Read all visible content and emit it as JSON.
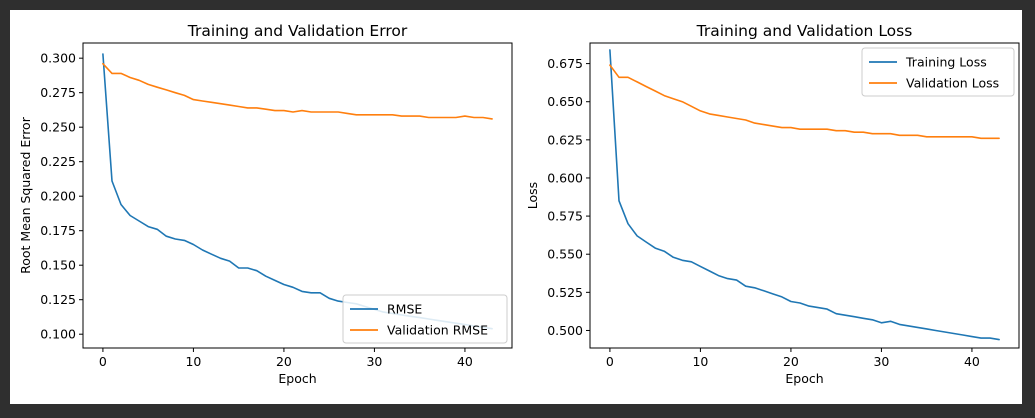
{
  "colors": {
    "train": "#1f77b4",
    "val": "#ff7f0e",
    "frame": "#000000",
    "legend_border": "#cccccc"
  },
  "chart_data": [
    {
      "type": "line",
      "title": "Training and Validation Error",
      "xlabel": "Epoch",
      "ylabel": "Root Mean Squared Error",
      "xlim": [
        -2.2,
        45.2
      ],
      "ylim": [
        0.09,
        0.311
      ],
      "xticks": [
        0,
        10,
        20,
        30,
        40
      ],
      "yticks": [
        0.1,
        0.125,
        0.15,
        0.175,
        0.2,
        0.225,
        0.25,
        0.275,
        0.3
      ],
      "ytick_labels": [
        "0.100",
        "0.125",
        "0.150",
        "0.175",
        "0.200",
        "0.225",
        "0.250",
        "0.275",
        "0.300"
      ],
      "legend_loc": "lower right",
      "series": [
        {
          "name": "RMSE",
          "color": "#1f77b4",
          "x": [
            0,
            1,
            2,
            3,
            4,
            5,
            6,
            7,
            8,
            9,
            10,
            11,
            12,
            13,
            14,
            15,
            16,
            17,
            18,
            19,
            20,
            21,
            22,
            23,
            24,
            25,
            26,
            27,
            28,
            29,
            30,
            31,
            32,
            33,
            34,
            35,
            36,
            37,
            38,
            39,
            40,
            41,
            42,
            43
          ],
          "y": [
            0.303,
            0.211,
            0.194,
            0.186,
            0.182,
            0.178,
            0.176,
            0.171,
            0.169,
            0.168,
            0.165,
            0.161,
            0.158,
            0.155,
            0.153,
            0.148,
            0.148,
            0.146,
            0.142,
            0.139,
            0.136,
            0.134,
            0.131,
            0.13,
            0.13,
            0.126,
            0.124,
            0.123,
            0.122,
            0.12,
            0.118,
            0.116,
            0.115,
            0.114,
            0.113,
            0.112,
            0.111,
            0.11,
            0.109,
            0.108,
            0.107,
            0.106,
            0.105,
            0.104
          ]
        },
        {
          "name": "Validation RMSE",
          "color": "#ff7f0e",
          "x": [
            0,
            1,
            2,
            3,
            4,
            5,
            6,
            7,
            8,
            9,
            10,
            11,
            12,
            13,
            14,
            15,
            16,
            17,
            18,
            19,
            20,
            21,
            22,
            23,
            24,
            25,
            26,
            27,
            28,
            29,
            30,
            31,
            32,
            33,
            34,
            35,
            36,
            37,
            38,
            39,
            40,
            41,
            42,
            43
          ],
          "y": [
            0.296,
            0.289,
            0.289,
            0.286,
            0.284,
            0.281,
            0.279,
            0.277,
            0.275,
            0.273,
            0.27,
            0.269,
            0.268,
            0.267,
            0.266,
            0.265,
            0.264,
            0.264,
            0.263,
            0.262,
            0.262,
            0.261,
            0.262,
            0.261,
            0.261,
            0.261,
            0.261,
            0.26,
            0.259,
            0.259,
            0.259,
            0.259,
            0.259,
            0.258,
            0.258,
            0.258,
            0.257,
            0.257,
            0.257,
            0.257,
            0.258,
            0.257,
            0.257,
            0.256
          ]
        }
      ]
    },
    {
      "type": "line",
      "title": "Training and Validation Loss",
      "xlabel": "Epoch",
      "ylabel": "Loss",
      "xlim": [
        -2.2,
        45.2
      ],
      "ylim": [
        0.4885,
        0.6885
      ],
      "xticks": [
        0,
        10,
        20,
        30,
        40
      ],
      "yticks": [
        0.5,
        0.525,
        0.55,
        0.575,
        0.6,
        0.625,
        0.65,
        0.675
      ],
      "ytick_labels": [
        "0.500",
        "0.525",
        "0.550",
        "0.575",
        "0.600",
        "0.625",
        "0.650",
        "0.675"
      ],
      "legend_loc": "upper right",
      "series": [
        {
          "name": "Training Loss",
          "color": "#1f77b4",
          "x": [
            0,
            1,
            2,
            3,
            4,
            5,
            6,
            7,
            8,
            9,
            10,
            11,
            12,
            13,
            14,
            15,
            16,
            17,
            18,
            19,
            20,
            21,
            22,
            23,
            24,
            25,
            26,
            27,
            28,
            29,
            30,
            31,
            32,
            33,
            34,
            35,
            36,
            37,
            38,
            39,
            40,
            41,
            42,
            43
          ],
          "y": [
            0.684,
            0.585,
            0.57,
            0.562,
            0.558,
            0.554,
            0.552,
            0.548,
            0.546,
            0.545,
            0.542,
            0.539,
            0.536,
            0.534,
            0.533,
            0.529,
            0.528,
            0.526,
            0.524,
            0.522,
            0.519,
            0.518,
            0.516,
            0.515,
            0.514,
            0.511,
            0.51,
            0.509,
            0.508,
            0.507,
            0.505,
            0.506,
            0.504,
            0.503,
            0.502,
            0.501,
            0.5,
            0.499,
            0.498,
            0.497,
            0.496,
            0.495,
            0.495,
            0.494
          ]
        },
        {
          "name": "Validation Loss",
          "color": "#ff7f0e",
          "x": [
            0,
            1,
            2,
            3,
            4,
            5,
            6,
            7,
            8,
            9,
            10,
            11,
            12,
            13,
            14,
            15,
            16,
            17,
            18,
            19,
            20,
            21,
            22,
            23,
            24,
            25,
            26,
            27,
            28,
            29,
            30,
            31,
            32,
            33,
            34,
            35,
            36,
            37,
            38,
            39,
            40,
            41,
            42,
            43
          ],
          "y": [
            0.674,
            0.666,
            0.666,
            0.663,
            0.66,
            0.657,
            0.654,
            0.652,
            0.65,
            0.647,
            0.644,
            0.642,
            0.641,
            0.64,
            0.639,
            0.638,
            0.636,
            0.635,
            0.634,
            0.633,
            0.633,
            0.632,
            0.632,
            0.632,
            0.632,
            0.631,
            0.631,
            0.63,
            0.63,
            0.629,
            0.629,
            0.629,
            0.628,
            0.628,
            0.628,
            0.627,
            0.627,
            0.627,
            0.627,
            0.627,
            0.627,
            0.626,
            0.626,
            0.626
          ]
        }
      ]
    }
  ]
}
